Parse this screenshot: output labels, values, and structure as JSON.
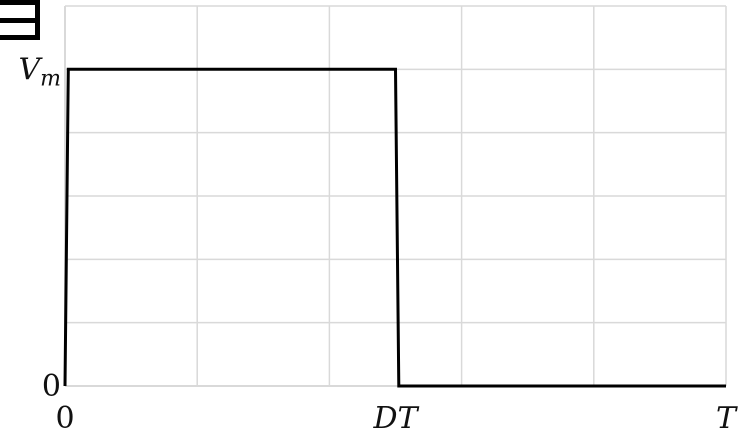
{
  "chart_data": {
    "type": "line",
    "title": "",
    "xlabel": "",
    "ylabel": "",
    "x_ticks": [
      {
        "value": 0,
        "label": "0"
      },
      {
        "value": 0.5,
        "label": "DT"
      },
      {
        "value": 1,
        "label": "T"
      }
    ],
    "y_ticks": [
      {
        "value": 0,
        "label": "0"
      },
      {
        "value": 1,
        "label": "V_m"
      }
    ],
    "xlim": [
      0,
      1
    ],
    "ylim": [
      0,
      1.2
    ],
    "grid": true,
    "legend": "none",
    "series": [
      {
        "x": [
          0,
          0.005,
          0.5,
          0.505,
          1
        ],
        "y": [
          0,
          1,
          1,
          0,
          0
        ]
      }
    ]
  },
  "colors": {
    "grid": "#d9d9d9",
    "line": "#000000",
    "corner_mark": "#000000"
  }
}
